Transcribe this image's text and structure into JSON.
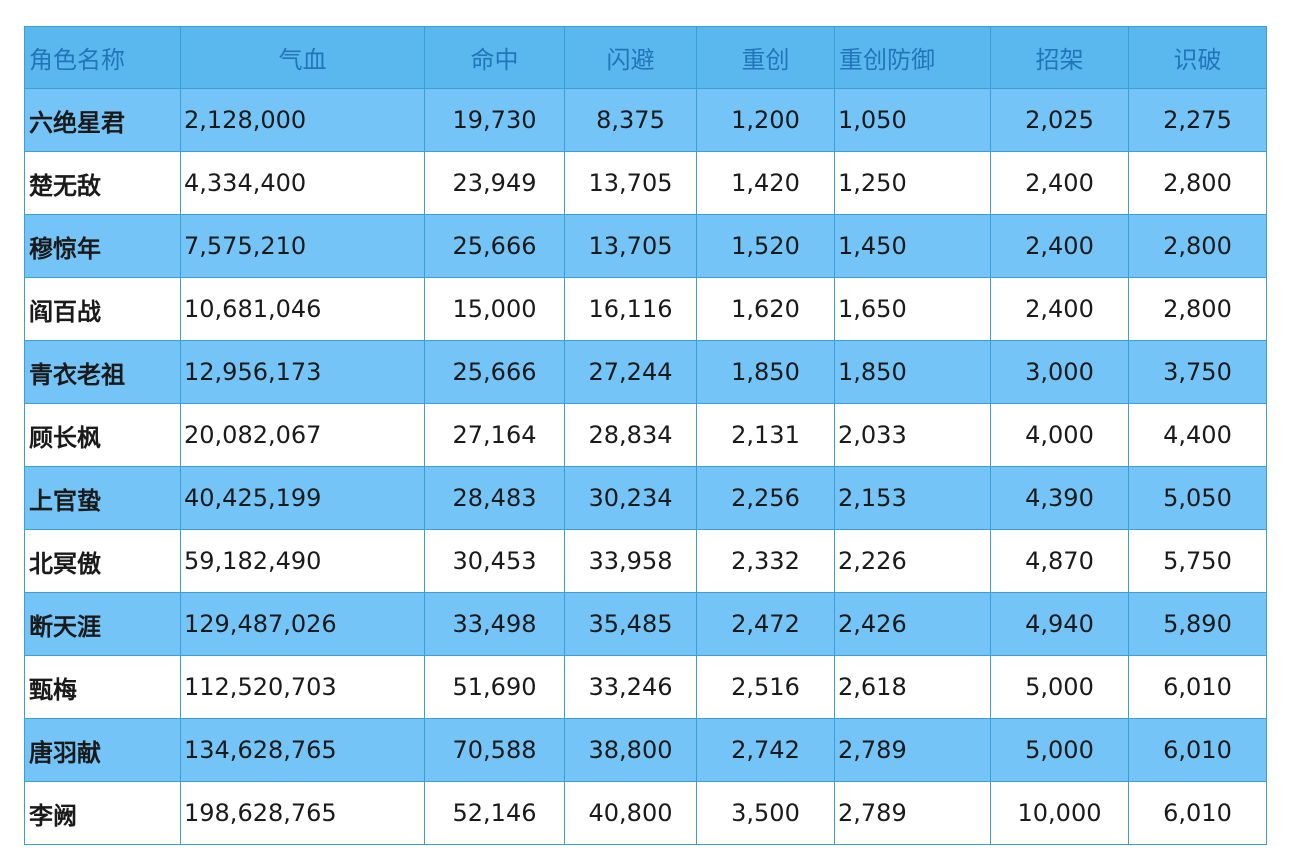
{
  "headers": [
    "角色名称",
    "气血",
    "命中",
    "闪避",
    "重创",
    "重创防御",
    "招架",
    "识破"
  ],
  "rows": [
    [
      "六绝星君",
      "2,128,000",
      "19,730",
      "8,375",
      "1,200",
      "1,050",
      "2,025",
      "2,275"
    ],
    [
      "楚无敌",
      "4,334,400",
      "23,949",
      "13,705",
      "1,420",
      "1,250",
      "2,400",
      "2,800"
    ],
    [
      "穆惊年",
      "7,575,210",
      "25,666",
      "13,705",
      "1,520",
      "1,450",
      "2,400",
      "2,800"
    ],
    [
      "阎百战",
      "10,681,046",
      "15,000",
      "16,116",
      "1,620",
      "1,650",
      "2,400",
      "2,800"
    ],
    [
      "青衣老祖",
      "12,956,173",
      "25,666",
      "27,244",
      "1,850",
      "1,850",
      "3,000",
      "3,750"
    ],
    [
      "顾长枫",
      "20,082,067",
      "27,164",
      "28,834",
      "2,131",
      "2,033",
      "4,000",
      "4,400"
    ],
    [
      "上官蛰",
      "40,425,199",
      "28,483",
      "30,234",
      "2,256",
      "2,153",
      "4,390",
      "5,050"
    ],
    [
      "北冥傲",
      "59,182,490",
      "30,453",
      "33,958",
      "2,332",
      "2,226",
      "4,870",
      "5,750"
    ],
    [
      "断天涯",
      "129,487,026",
      "33,498",
      "35,485",
      "2,472",
      "2,426",
      "4,940",
      "5,890"
    ],
    [
      "甄梅",
      "112,520,703",
      "51,690",
      "33,246",
      "2,516",
      "2,618",
      "5,000",
      "6,010"
    ],
    [
      "唐羽献",
      "134,628,765",
      "70,588",
      "38,800",
      "2,742",
      "2,789",
      "5,000",
      "6,010"
    ],
    [
      "李阙",
      "198,628,765",
      "52,146",
      "40,800",
      "3,500",
      "2,789",
      "10,000",
      "6,010"
    ]
  ],
  "colors": {
    "header_bg": "#5ab8ee",
    "header_text": "#2276b8",
    "stripe_row_bg": "#74c4f7",
    "plain_row_bg": "#ffffff",
    "grid_line": "#3b9fd6"
  }
}
